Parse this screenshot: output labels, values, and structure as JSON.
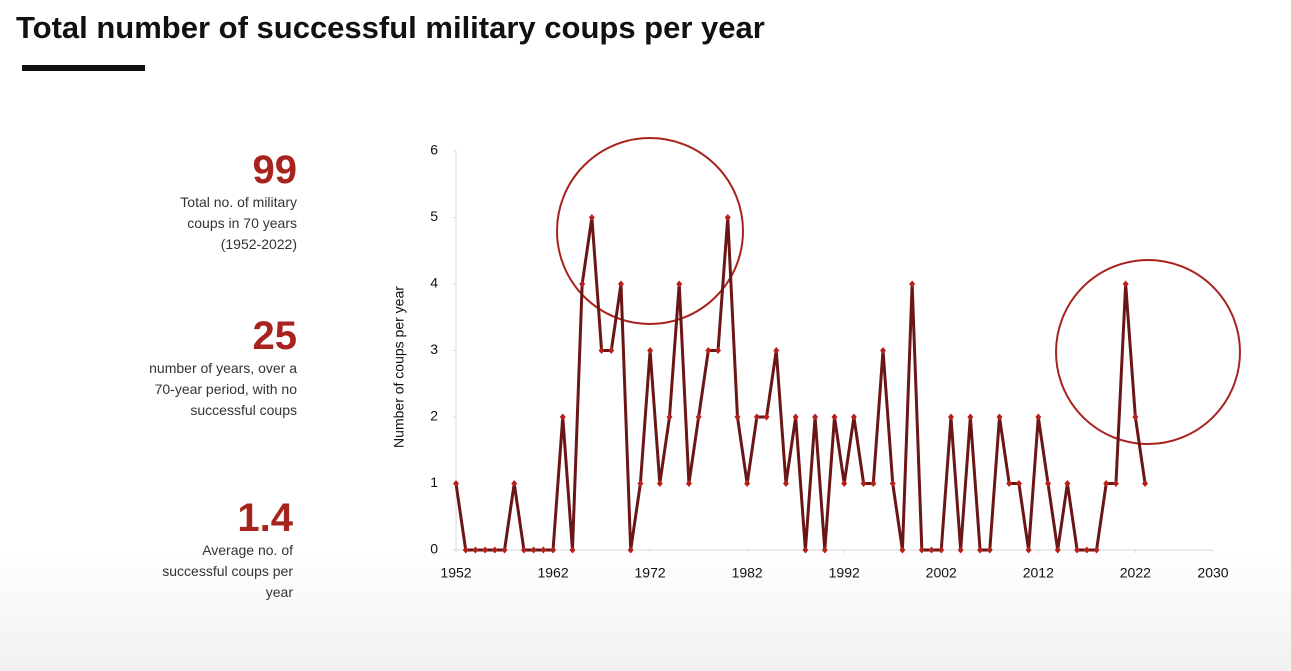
{
  "title": "Total number of successful military coups per year",
  "stats": [
    {
      "value": "99",
      "lines": [
        "Total no. of military",
        "coups in 70 years",
        "(1952-2022)"
      ]
    },
    {
      "value": "25",
      "lines": [
        "number of years, over a",
        "70-year period, with no",
        "successful coups"
      ]
    },
    {
      "value": "1.4",
      "lines": [
        "Average no. of",
        "successful coups per",
        "year"
      ]
    }
  ],
  "chart_data": {
    "type": "line",
    "y_label": "Number of coups per year",
    "x": [
      1952,
      1953,
      1954,
      1955,
      1956,
      1957,
      1958,
      1959,
      1960,
      1961,
      1962,
      1963,
      1964,
      1965,
      1966,
      1967,
      1968,
      1969,
      1970,
      1971,
      1972,
      1973,
      1974,
      1975,
      1976,
      1977,
      1978,
      1979,
      1980,
      1981,
      1982,
      1983,
      1984,
      1985,
      1986,
      1987,
      1988,
      1989,
      1990,
      1991,
      1992,
      1993,
      1994,
      1995,
      1996,
      1997,
      1998,
      1999,
      2000,
      2001,
      2002,
      2003,
      2004,
      2005,
      2006,
      2007,
      2008,
      2009,
      2010,
      2011,
      2012,
      2013,
      2014,
      2015,
      2016,
      2017,
      2018,
      2019,
      2020,
      2021,
      2022,
      2023
    ],
    "values": [
      1,
      0,
      0,
      0,
      0,
      0,
      1,
      0,
      0,
      0,
      0,
      2,
      0,
      4,
      5,
      3,
      3,
      4,
      0,
      1,
      3,
      1,
      2,
      4,
      1,
      2,
      3,
      3,
      5,
      2,
      1,
      2,
      2,
      3,
      1,
      2,
      0,
      2,
      0,
      2,
      1,
      2,
      1,
      1,
      3,
      1,
      0,
      4,
      0,
      0,
      0,
      2,
      0,
      2,
      0,
      0,
      2,
      1,
      1,
      0,
      2,
      1,
      0,
      1,
      0,
      0,
      0,
      1,
      1,
      4,
      2,
      1
    ],
    "color": "#6b1616",
    "marker_color": "#b5201c",
    "xlim": [
      1952,
      2030
    ],
    "xticks": [
      1952,
      1962,
      1972,
      1982,
      1992,
      2002,
      2012,
      2022,
      2030
    ],
    "ylim": [
      0,
      6
    ],
    "yticks": [
      0,
      1,
      2,
      3,
      4,
      5,
      6
    ],
    "grid": false
  }
}
